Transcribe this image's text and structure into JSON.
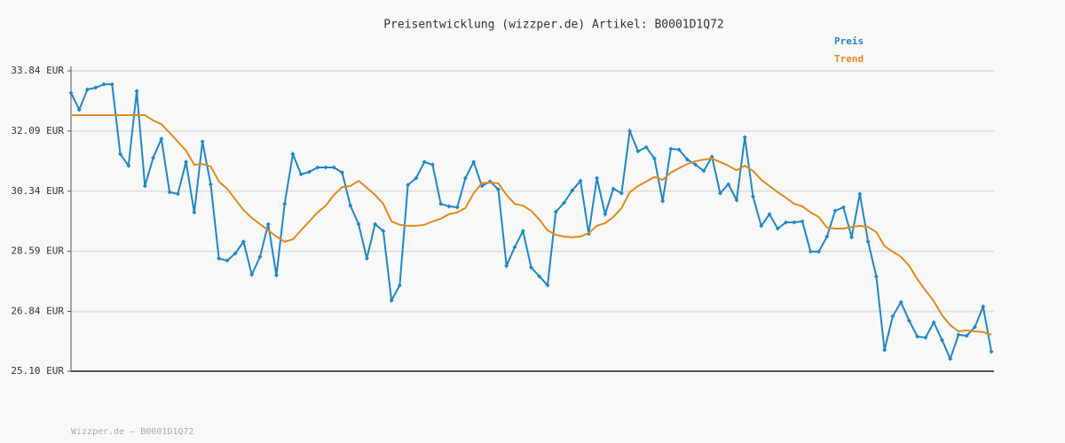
{
  "chart_data": {
    "type": "line",
    "title": "Preisentwicklung (wizzper.de) Artikel: B0001D1Q72",
    "footer": "Wizzper.de – B0001D1Q72",
    "ylim": [
      25.1,
      33.84
    ],
    "yticks": [
      {
        "value": 25.1,
        "label": "25.10 EUR"
      },
      {
        "value": 26.84,
        "label": "26.84 EUR"
      },
      {
        "value": 28.59,
        "label": "28.59 EUR"
      },
      {
        "value": 30.34,
        "label": "30.34 EUR"
      },
      {
        "value": 32.09,
        "label": "32.09 EUR"
      },
      {
        "value": 33.84,
        "label": "33.84 EUR"
      }
    ],
    "grid": true,
    "legend": "top-right",
    "series": [
      {
        "name": "Preis",
        "color": "#1f86c4",
        "markers": true,
        "values": [
          33.2,
          32.71,
          33.3,
          33.35,
          33.45,
          33.45,
          31.42,
          31.08,
          33.25,
          30.49,
          31.31,
          31.86,
          30.31,
          30.26,
          31.19,
          29.72,
          31.78,
          30.54,
          28.38,
          28.32,
          28.53,
          28.87,
          27.91,
          28.43,
          29.38,
          27.89,
          29.97,
          31.42,
          30.83,
          30.9,
          31.03,
          31.03,
          31.03,
          30.88,
          29.92,
          29.38,
          28.38,
          29.38,
          29.18,
          27.16,
          27.6,
          30.52,
          30.72,
          31.19,
          31.11,
          29.97,
          29.9,
          29.87,
          30.72,
          31.19,
          30.49,
          30.62,
          30.39,
          28.17,
          28.71,
          29.18,
          28.12,
          27.86,
          27.6,
          29.74,
          30.0,
          30.36,
          30.64,
          29.1,
          30.72,
          29.67,
          30.41,
          30.28,
          32.09,
          31.5,
          31.62,
          31.29,
          30.05,
          31.57,
          31.55,
          31.26,
          31.11,
          30.93,
          31.34,
          30.28,
          30.54,
          30.08,
          31.91,
          30.18,
          29.33,
          29.67,
          29.25,
          29.43,
          29.43,
          29.46,
          28.58,
          28.58,
          29.02,
          29.77,
          29.87,
          29.0,
          30.26,
          28.87,
          27.86,
          25.72,
          26.7,
          27.11,
          26.57,
          26.11,
          26.08,
          26.52,
          26.01,
          25.46,
          26.16,
          26.13,
          26.39,
          26.98,
          25.67
        ]
      },
      {
        "name": "Trend",
        "color": "#e08a1e",
        "markers": false,
        "values": [
          32.55,
          32.55,
          32.55,
          32.55,
          32.55,
          32.55,
          32.55,
          32.55,
          32.55,
          32.55,
          32.4,
          32.29,
          32.04,
          31.78,
          31.52,
          31.11,
          31.13,
          31.06,
          30.62,
          30.41,
          30.1,
          29.79,
          29.56,
          29.38,
          29.2,
          29.02,
          28.87,
          28.94,
          29.2,
          29.46,
          29.72,
          29.92,
          30.23,
          30.46,
          30.49,
          30.64,
          30.44,
          30.23,
          29.97,
          29.46,
          29.36,
          29.33,
          29.33,
          29.36,
          29.46,
          29.54,
          29.67,
          29.72,
          29.85,
          30.28,
          30.57,
          30.59,
          30.57,
          30.23,
          29.97,
          29.92,
          29.77,
          29.51,
          29.2,
          29.07,
          29.02,
          29.0,
          29.02,
          29.12,
          29.33,
          29.41,
          29.59,
          29.85,
          30.31,
          30.49,
          30.62,
          30.75,
          30.67,
          30.88,
          31.01,
          31.13,
          31.21,
          31.26,
          31.29,
          31.19,
          31.08,
          30.95,
          31.08,
          30.93,
          30.67,
          30.49,
          30.31,
          30.15,
          29.97,
          29.9,
          29.72,
          29.59,
          29.28,
          29.25,
          29.25,
          29.3,
          29.33,
          29.3,
          29.15,
          28.74,
          28.58,
          28.43,
          28.17,
          27.78,
          27.45,
          27.14,
          26.73,
          26.44,
          26.26,
          26.29,
          26.26,
          26.24,
          26.16
        ]
      }
    ]
  }
}
